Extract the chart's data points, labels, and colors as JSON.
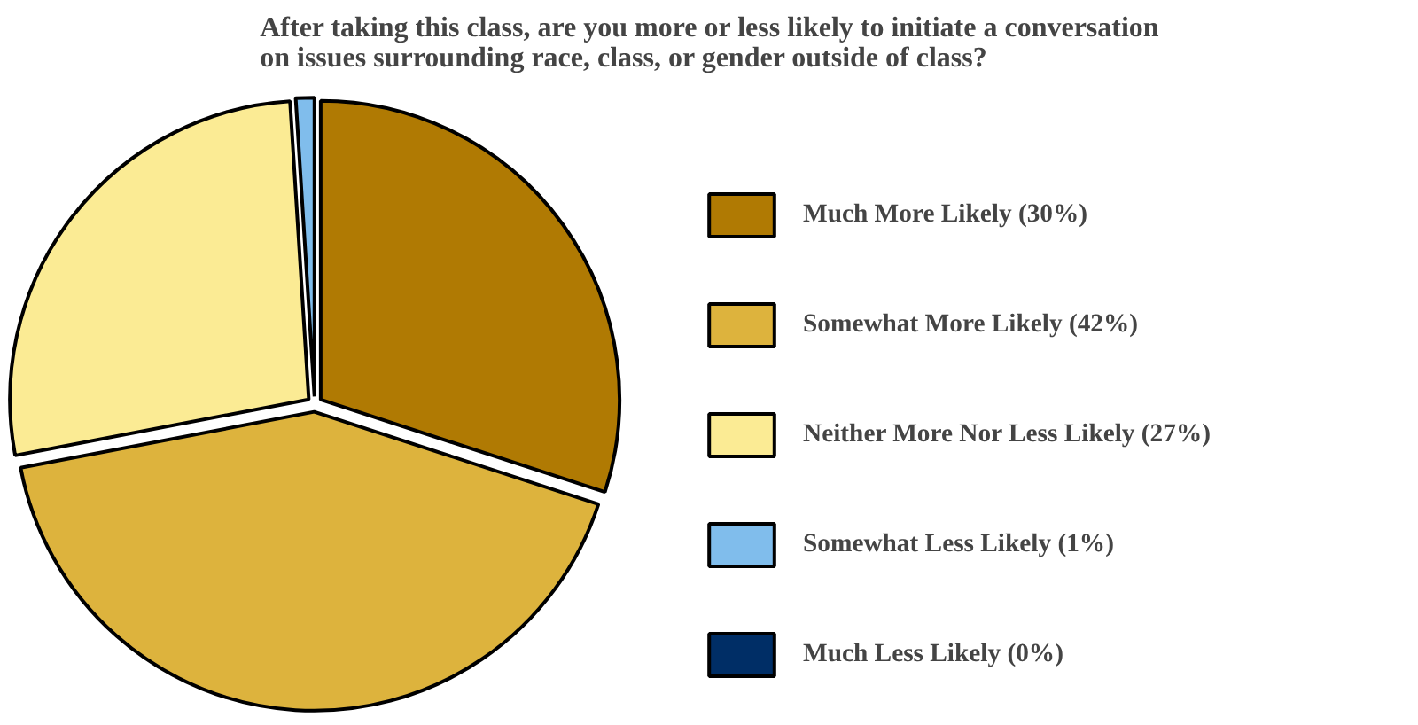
{
  "chart_data": {
    "type": "pie",
    "title": "After taking this class, are you more or less likely to initiate a conversation\non issues surrounding race, class, or gender outside of class?",
    "categories": [
      "Much More Likely (30%)",
      "Somewhat More Likely (42%)",
      "Neither More Nor Less Likely (27%)",
      "Somewhat Less Likely (1%)",
      "Much Less Likely (0%)"
    ],
    "values": [
      30,
      42,
      27,
      1,
      0
    ],
    "colors": [
      "#b07a03",
      "#ddb33d",
      "#fbeb94",
      "#80bdec",
      "#002e66"
    ],
    "legend": "right"
  }
}
